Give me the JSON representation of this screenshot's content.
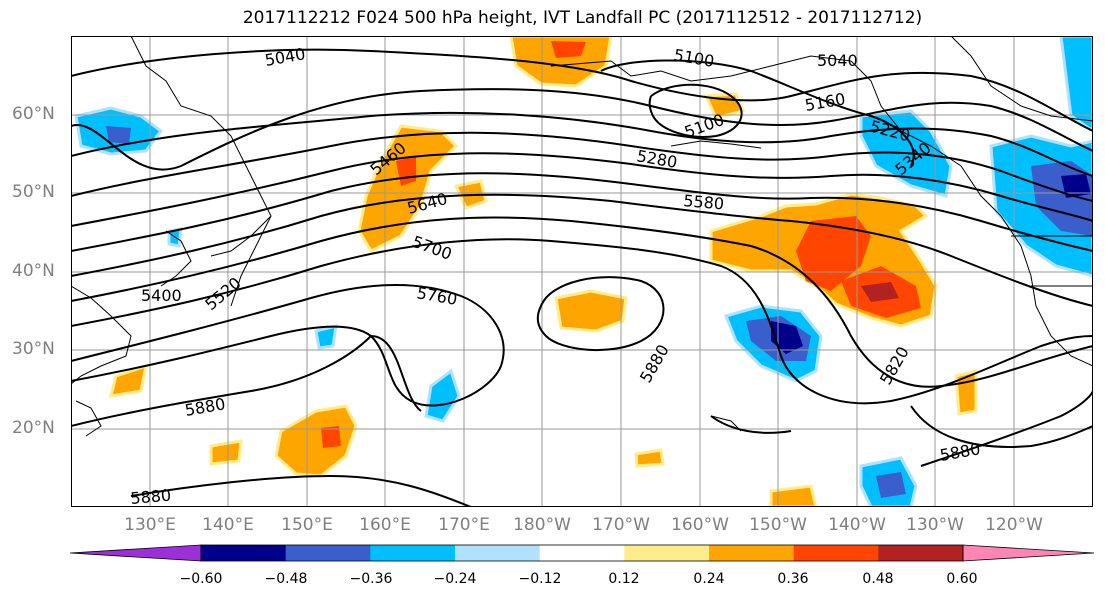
{
  "title": "2017112212 F024 500 hPa height, IVT Landfall PC (2017112512 - 2017112712)",
  "lat_labels": [
    "60°N",
    "50°N",
    "40°N",
    "30°N",
    "20°N"
  ],
  "lon_labels": [
    "130°E",
    "140°E",
    "150°E",
    "160°E",
    "170°E",
    "180°W",
    "170°W",
    "160°W",
    "150°W",
    "140°W",
    "130°W",
    "120°W"
  ],
  "contour_labels": [
    "5040",
    "5100",
    "5040",
    "5160",
    "5100",
    "5220",
    "5280",
    "5340",
    "5460",
    "5580",
    "5640",
    "5700",
    "5760",
    "5400",
    "5520",
    "5880",
    "5880",
    "5820",
    "5880",
    "5880"
  ],
  "colorbar": {
    "ticks": [
      "−0.60",
      "−0.48",
      "−0.36",
      "−0.24",
      "−0.12",
      "0.12",
      "0.24",
      "0.36",
      "0.48",
      "0.60"
    ],
    "colors": [
      "#9b30d9",
      "#00008b",
      "#3a5fcd",
      "#00bfff",
      "#b0e2ff",
      "#ffffff",
      "#ffec8b",
      "#ffa500",
      "#ff4500",
      "#b22222",
      "#ff86b3"
    ]
  }
}
